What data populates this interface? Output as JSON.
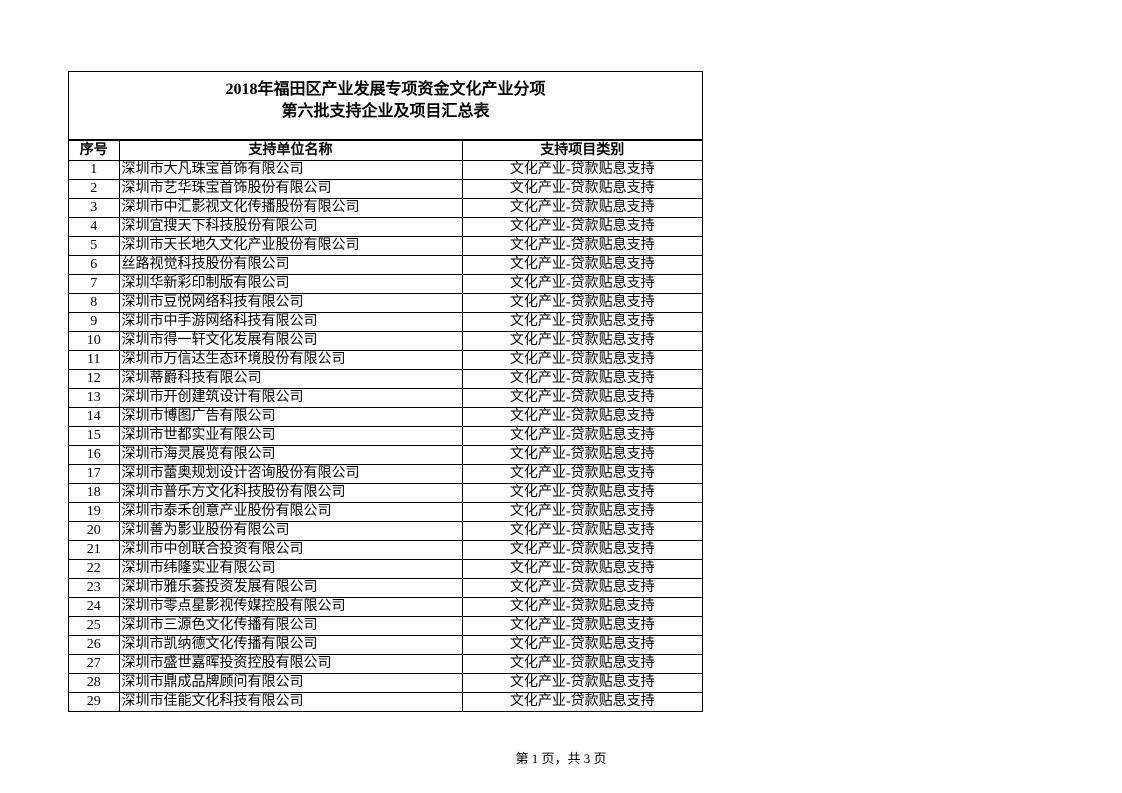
{
  "title": {
    "line1": "2018年福田区产业发展专项资金文化产业分项",
    "line2": "第六批支持企业及项目汇总表"
  },
  "columns": [
    "序号",
    "支持单位名称",
    "支持项目类别"
  ],
  "rows": [
    [
      "1",
      "深圳市大凡珠宝首饰有限公司",
      "文化产业-贷款贴息支持"
    ],
    [
      "2",
      "深圳市艺华珠宝首饰股份有限公司",
      "文化产业-贷款贴息支持"
    ],
    [
      "3",
      "深圳市中汇影视文化传播股份有限公司",
      "文化产业-贷款贴息支持"
    ],
    [
      "4",
      "深圳宜搜天下科技股份有限公司",
      "文化产业-贷款贴息支持"
    ],
    [
      "5",
      "深圳市天长地久文化产业股份有限公司",
      "文化产业-贷款贴息支持"
    ],
    [
      "6",
      "丝路视觉科技股份有限公司",
      "文化产业-贷款贴息支持"
    ],
    [
      "7",
      "深圳华新彩印制版有限公司",
      "文化产业-贷款贴息支持"
    ],
    [
      "8",
      "深圳市豆悦网络科技有限公司",
      "文化产业-贷款贴息支持"
    ],
    [
      "9",
      "深圳市中手游网络科技有限公司",
      "文化产业-贷款贴息支持"
    ],
    [
      "10",
      "深圳市得一轩文化发展有限公司",
      "文化产业-贷款贴息支持"
    ],
    [
      "11",
      "深圳市万信达生态环境股份有限公司",
      "文化产业-贷款贴息支持"
    ],
    [
      "12",
      "深圳蒂爵科技有限公司",
      "文化产业-贷款贴息支持"
    ],
    [
      "13",
      "深圳市开创建筑设计有限公司",
      "文化产业-贷款贴息支持"
    ],
    [
      "14",
      "深圳市博图广告有限公司",
      "文化产业-贷款贴息支持"
    ],
    [
      "15",
      "深圳市世都实业有限公司",
      "文化产业-贷款贴息支持"
    ],
    [
      "16",
      "深圳市海灵展览有限公司",
      "文化产业-贷款贴息支持"
    ],
    [
      "17",
      "深圳市蕾奥规划设计咨询股份有限公司",
      "文化产业-贷款贴息支持"
    ],
    [
      "18",
      "深圳市普乐方文化科技股份有限公司",
      "文化产业-贷款贴息支持"
    ],
    [
      "19",
      "深圳市泰禾创意产业股份有限公司",
      "文化产业-贷款贴息支持"
    ],
    [
      "20",
      "深圳善为影业股份有限公司",
      "文化产业-贷款贴息支持"
    ],
    [
      "21",
      "深圳市中创联合投资有限公司",
      "文化产业-贷款贴息支持"
    ],
    [
      "22",
      "深圳市纬隆实业有限公司",
      "文化产业-贷款贴息支持"
    ],
    [
      "23",
      "深圳市雅乐荟投资发展有限公司",
      "文化产业-贷款贴息支持"
    ],
    [
      "24",
      "深圳市零点星影视传媒控股有限公司",
      "文化产业-贷款贴息支持"
    ],
    [
      "25",
      "深圳市三源色文化传播有限公司",
      "文化产业-贷款贴息支持"
    ],
    [
      "26",
      "深圳市凯纳德文化传播有限公司",
      "文化产业-贷款贴息支持"
    ],
    [
      "27",
      "深圳市盛世嘉晖投资控股有限公司",
      "文化产业-贷款贴息支持"
    ],
    [
      "28",
      "深圳市鼎成品牌顾问有限公司",
      "文化产业-贷款贴息支持"
    ],
    [
      "29",
      "深圳市佳能文化科技有限公司",
      "文化产业-贷款贴息支持"
    ]
  ],
  "footer": "第 1 页，共 3 页"
}
